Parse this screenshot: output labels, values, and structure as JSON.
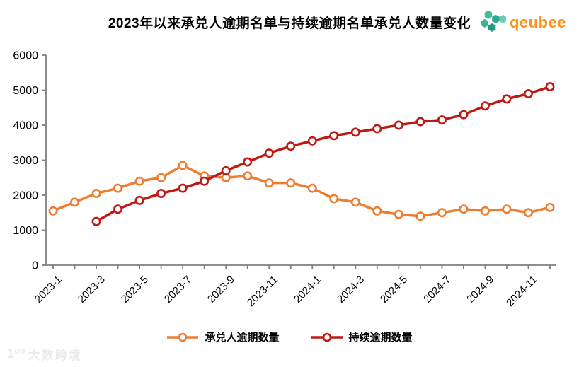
{
  "header": {
    "title": "2023年以来承兑人逾期名单与持续逾期名单承兑人数量变化",
    "logo": {
      "text": "qeubee",
      "text_color": "#F7941D",
      "icon": "hexagon-cluster-icon",
      "icon_colors": [
        "#45BA9C",
        "#2FA88A",
        "#6ECDB6",
        "#3BB496",
        "#259B7E"
      ]
    }
  },
  "chart_data": {
    "type": "line",
    "title": "2023年以来承兑人逾期名单与持续逾期名单承兑人数量变化",
    "x": [
      "2023-1",
      "2023-2",
      "2023-3",
      "2023-4",
      "2023-5",
      "2023-6",
      "2023-7",
      "2023-8",
      "2023-9",
      "2023-10",
      "2023-11",
      "2023-12",
      "2024-1",
      "2024-2",
      "2024-3",
      "2024-4",
      "2024-5",
      "2024-6",
      "2024-7",
      "2024-8",
      "2024-9",
      "2024-10",
      "2024-11",
      "2024-12"
    ],
    "x_tick_label_every": 2,
    "series": [
      {
        "name": "承兑人逾期数量",
        "color": "#ED7D31",
        "values": [
          1550,
          1800,
          2050,
          2200,
          2400,
          2500,
          2850,
          2550,
          2500,
          2550,
          2350,
          2350,
          2200,
          1900,
          1800,
          1550,
          1450,
          1400,
          1500,
          1600,
          1550,
          1600,
          1500,
          1650
        ]
      },
      {
        "name": "持续逾期数量",
        "color": "#BE1A14",
        "values": [
          null,
          null,
          1250,
          1600,
          1850,
          2050,
          2200,
          2400,
          2700,
          2950,
          3200,
          3400,
          3550,
          3700,
          3800,
          3900,
          4000,
          4100,
          4150,
          4300,
          4550,
          4750,
          4900,
          5100
        ]
      }
    ],
    "xlabel": "",
    "ylabel": "",
    "ylim": [
      0,
      6000
    ],
    "y_ticks": [
      0,
      1000,
      2000,
      3000,
      4000,
      5000,
      6000
    ],
    "grid": false,
    "legend_position": "bottom",
    "marker": "circle-white-fill",
    "axis_color": "#7F7F7F"
  },
  "legend": {
    "items": [
      {
        "label": "承兑人逾期数量",
        "color": "#ED7D31"
      },
      {
        "label": "持续逾期数量",
        "color": "#BE1A14"
      }
    ]
  },
  "watermark": {
    "icon_text": "1⁰⁰",
    "text": "大数跨境"
  }
}
